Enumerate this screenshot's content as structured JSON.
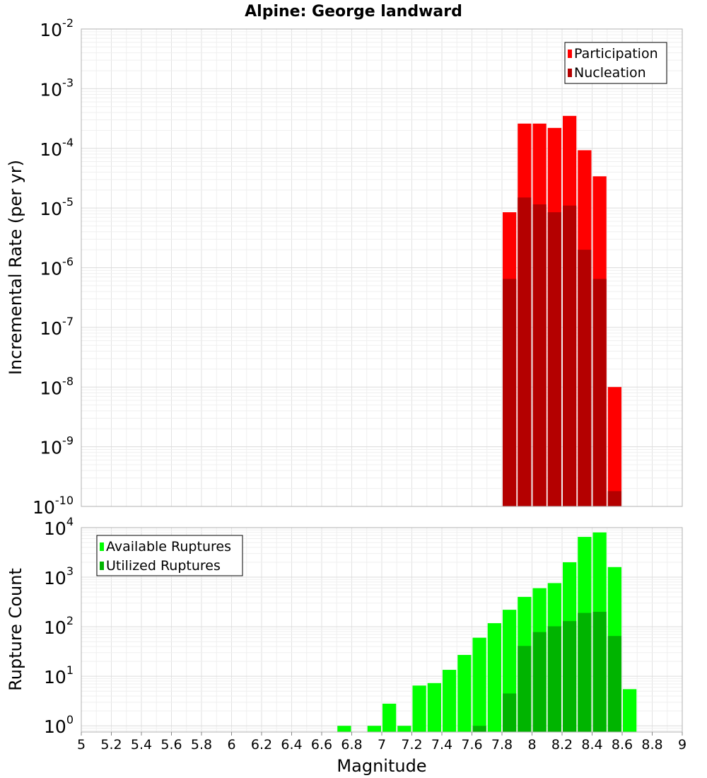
{
  "title": "Alpine: George landward",
  "chart_data": [
    {
      "type": "bar",
      "panel": "top",
      "ylabel": "Incremental Rate (per yr)",
      "xlabel": "",
      "xlim": [
        5,
        9
      ],
      "ylim": [
        1e-10,
        0.01
      ],
      "yscale": "log",
      "grid": true,
      "legend_position": "top-right",
      "bin_width": 0.1,
      "x": [
        7.85,
        7.95,
        8.05,
        8.15,
        8.25,
        8.35,
        8.45,
        8.55
      ],
      "series": [
        {
          "name": "Participation",
          "color": "#ff0000",
          "values": [
            8.5e-06,
            0.00026,
            0.00026,
            0.00022,
            0.00035,
            9.3e-05,
            3.4e-05,
            1e-08
          ]
        },
        {
          "name": "Nucleation",
          "color": "#b40000",
          "values": [
            6.5e-07,
            1.5e-05,
            1.15e-05,
            8.5e-06,
            1.1e-05,
            2e-06,
            6.5e-07,
            1.8e-10
          ]
        }
      ],
      "yticks": [
        {
          "base": "10",
          "exp": "-10",
          "value": 1e-10
        },
        {
          "base": "10",
          "exp": "-9",
          "value": 1e-09
        },
        {
          "base": "10",
          "exp": "-8",
          "value": 1e-08
        },
        {
          "base": "10",
          "exp": "-7",
          "value": 1e-07
        },
        {
          "base": "10",
          "exp": "-6",
          "value": 1e-06
        },
        {
          "base": "10",
          "exp": "-5",
          "value": 1e-05
        },
        {
          "base": "10",
          "exp": "-4",
          "value": 0.0001
        },
        {
          "base": "10",
          "exp": "-3",
          "value": 0.001
        },
        {
          "base": "10",
          "exp": "-2",
          "value": 0.01
        }
      ]
    },
    {
      "type": "bar",
      "panel": "bottom",
      "ylabel": "Rupture Count",
      "xlabel": "Magnitude",
      "xlim": [
        5,
        9
      ],
      "ylim": [
        0.75,
        10000
      ],
      "yscale": "log",
      "grid": true,
      "legend_position": "top-left",
      "bin_width": 0.1,
      "x": [
        6.75,
        6.95,
        7.05,
        7.15,
        7.25,
        7.35,
        7.45,
        7.55,
        7.65,
        7.75,
        7.85,
        7.95,
        8.05,
        8.15,
        8.25,
        8.35,
        8.45,
        8.55,
        8.65
      ],
      "series": [
        {
          "name": "Available Ruptures",
          "color": "#00ff00",
          "values": [
            1,
            1,
            2.8,
            1,
            6.5,
            7.3,
            13.5,
            27,
            60,
            118,
            220,
            400,
            600,
            760,
            2000,
            6500,
            8000,
            1600,
            5.5
          ]
        },
        {
          "name": "Utilized Ruptures",
          "color": "#00b400",
          "values": [
            0,
            0,
            0,
            0,
            0,
            0,
            0,
            0,
            1,
            0,
            4.5,
            41,
            78,
            102,
            130,
            190,
            200,
            65,
            0
          ]
        }
      ],
      "yticks": [
        {
          "base": "10",
          "exp": "0",
          "value": 1
        },
        {
          "base": "10",
          "exp": "1",
          "value": 10
        },
        {
          "base": "10",
          "exp": "2",
          "value": 100
        },
        {
          "base": "10",
          "exp": "3",
          "value": 1000
        },
        {
          "base": "10",
          "exp": "4",
          "value": 10000
        }
      ],
      "xticks": [
        "5",
        "5.2",
        "5.4",
        "5.6",
        "5.8",
        "6",
        "6.2",
        "6.4",
        "6.6",
        "6.8",
        "7",
        "7.2",
        "7.4",
        "7.6",
        "7.8",
        "8",
        "8.2",
        "8.4",
        "8.6",
        "8.8",
        "9"
      ]
    }
  ]
}
